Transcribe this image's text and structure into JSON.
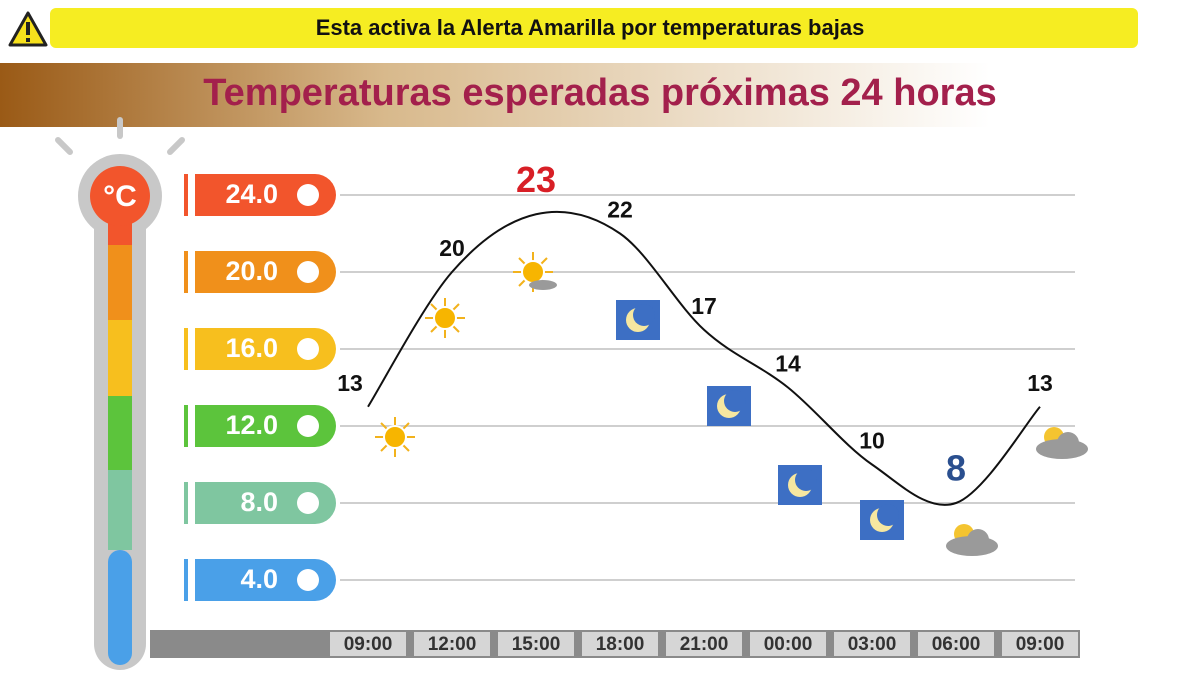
{
  "alert": "Esta activa la Alerta Amarilla por temperaturas bajas",
  "chart_data": {
    "type": "line",
    "title": "Temperaturas esperadas próximas 24 horas",
    "unit_label": "°C",
    "categories": [
      "09:00",
      "12:00",
      "15:00",
      "18:00",
      "21:00",
      "00:00",
      "03:00",
      "06:00",
      "09:00"
    ],
    "values": [
      13,
      20,
      23,
      22,
      17,
      14,
      10,
      8,
      13
    ],
    "color": "#111111",
    "ylim": [
      4,
      24
    ],
    "yticks": [
      {
        "value": 24,
        "label": "24.0"
      },
      {
        "value": 20,
        "label": "20.0"
      },
      {
        "value": 16,
        "label": "16.0"
      },
      {
        "value": 12,
        "label": "12.0"
      },
      {
        "value": 8,
        "label": "8.0"
      },
      {
        "value": 4,
        "label": "4.0"
      }
    ],
    "ytick_colors": [
      "#f2552c",
      "#f0901b",
      "#f7bf1e",
      "#5cc43c",
      "#7fc6a0",
      "#4aa0e8"
    ],
    "grid": true
  }
}
